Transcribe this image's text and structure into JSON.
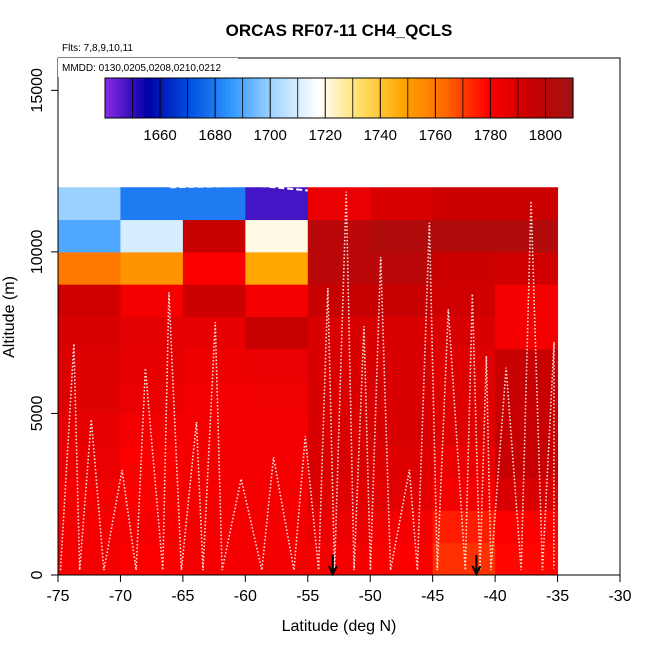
{
  "chart_data": {
    "type": "heatmap",
    "title": "ORCAS RF07-11 CH4_QCLS",
    "notes": {
      "flights": "Flts: 7,8,9,10,11",
      "dates": "MMDD: 0130,0205,0208,0210,0212"
    },
    "xlabel": "Latitude (deg N)",
    "ylabel": "Altitude (m)",
    "xlim": [
      -75,
      -30
    ],
    "ylim": [
      0,
      16000
    ],
    "x_ticks": [
      -75,
      -70,
      -65,
      -60,
      -55,
      -50,
      -45,
      -40,
      -35,
      -30
    ],
    "y_ticks": [
      0,
      5000,
      10000,
      15000
    ],
    "colorbar": {
      "range": [
        1640,
        1810
      ],
      "ticks": [
        1660,
        1680,
        1700,
        1720,
        1740,
        1760,
        1780,
        1800
      ],
      "colors": [
        "#8a2be2",
        "#0000a8",
        "#0050e0",
        "#3399ff",
        "#a8d8ff",
        "#ffffff",
        "#ffe066",
        "#ffa500",
        "#ff6a00",
        "#ff0000",
        "#c80000",
        "#a01414"
      ]
    },
    "lat_bins": [
      -75,
      -70,
      -65,
      -60,
      -55,
      -50,
      -45,
      -40,
      -35
    ],
    "alt_bins": [
      0,
      1000,
      2000,
      3000,
      4000,
      5000,
      6000,
      7000,
      8000,
      9000,
      10000,
      11000,
      12000
    ],
    "values": [
      [
        1782,
        1780,
        1782,
        1782,
        1782,
        1780,
        1772,
        1778
      ],
      [
        1782,
        1782,
        1782,
        1782,
        1785,
        1782,
        1775,
        1780
      ],
      [
        1782,
        1780,
        1782,
        1782,
        1788,
        1787,
        1782,
        1790
      ],
      [
        1785,
        1780,
        1782,
        1782,
        1790,
        1788,
        1785,
        1795
      ],
      [
        1786,
        1782,
        1782,
        1782,
        1790,
        1790,
        1788,
        1795
      ],
      [
        1788,
        1785,
        1782,
        1783,
        1790,
        1790,
        1788,
        1795
      ],
      [
        1788,
        1786,
        1784,
        1785,
        1790,
        1790,
        1788,
        1795
      ],
      [
        1790,
        1787,
        1786,
        1795,
        1790,
        1790,
        1790,
        1782
      ],
      [
        1792,
        1782,
        1793,
        1782,
        1795,
        1795,
        1792,
        1782
      ],
      [
        1760,
        1753,
        1780,
        1748,
        1800,
        1800,
        1793,
        1792
      ],
      [
        1690,
        1710,
        1795,
        1720,
        1800,
        1803,
        1803,
        1803
      ],
      [
        1700,
        1680,
        1680,
        1648,
        1785,
        1790,
        1793,
        1793
      ]
    ],
    "arrows_latitude": [
      -53,
      -41.5
    ]
  }
}
